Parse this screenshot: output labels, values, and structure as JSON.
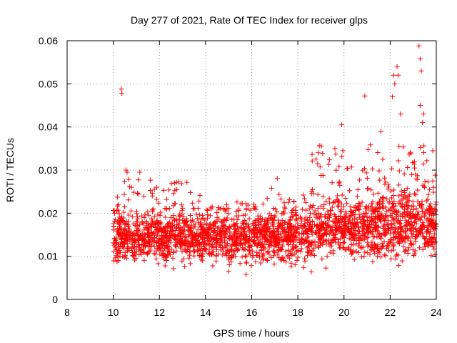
{
  "chart_data": {
    "type": "scatter",
    "title": "Day 277 of 2021, Rate Of TEC Index for receiver glps",
    "xlabel": "GPS time / hours",
    "ylabel": "ROTI / TECUs",
    "xlim": [
      8,
      24
    ],
    "ylim": [
      0,
      0.06
    ],
    "xticks": [
      8,
      10,
      12,
      14,
      16,
      18,
      20,
      22,
      24
    ],
    "xtick_labels": [
      "8",
      "10",
      "12",
      "14",
      "16",
      "18",
      "20",
      "22",
      "24"
    ],
    "yticks": [
      0,
      0.01,
      0.02,
      0.03,
      0.04,
      0.05,
      0.06
    ],
    "ytick_labels": [
      "0",
      "0.01",
      "0.02",
      "0.03",
      "0.04",
      "0.05",
      "0.06"
    ],
    "grid": true,
    "marker": "+",
    "color": "#ff0000",
    "series": [
      {
        "name": "ROTI",
        "x_range": [
          10.0,
          24.0
        ],
        "typical_band": [
          0.005,
          0.022
        ],
        "outliers": [
          {
            "x": 10.35,
            "y": 0.0488
          },
          {
            "x": 10.37,
            "y": 0.0478
          },
          {
            "x": 10.55,
            "y": 0.03
          },
          {
            "x": 10.6,
            "y": 0.0295
          },
          {
            "x": 11.15,
            "y": 0.0295
          },
          {
            "x": 19.9,
            "y": 0.0405
          },
          {
            "x": 19.95,
            "y": 0.0345
          },
          {
            "x": 20.9,
            "y": 0.0472
          },
          {
            "x": 21.6,
            "y": 0.039
          },
          {
            "x": 22.15,
            "y": 0.052
          },
          {
            "x": 22.2,
            "y": 0.05
          },
          {
            "x": 22.3,
            "y": 0.054
          },
          {
            "x": 22.35,
            "y": 0.052
          },
          {
            "x": 22.1,
            "y": 0.047
          },
          {
            "x": 22.45,
            "y": 0.043
          },
          {
            "x": 23.25,
            "y": 0.0588
          },
          {
            "x": 23.3,
            "y": 0.0558
          },
          {
            "x": 23.35,
            "y": 0.053
          },
          {
            "x": 23.3,
            "y": 0.045
          },
          {
            "x": 23.45,
            "y": 0.043
          },
          {
            "x": 23.4,
            "y": 0.041
          }
        ]
      }
    ]
  }
}
